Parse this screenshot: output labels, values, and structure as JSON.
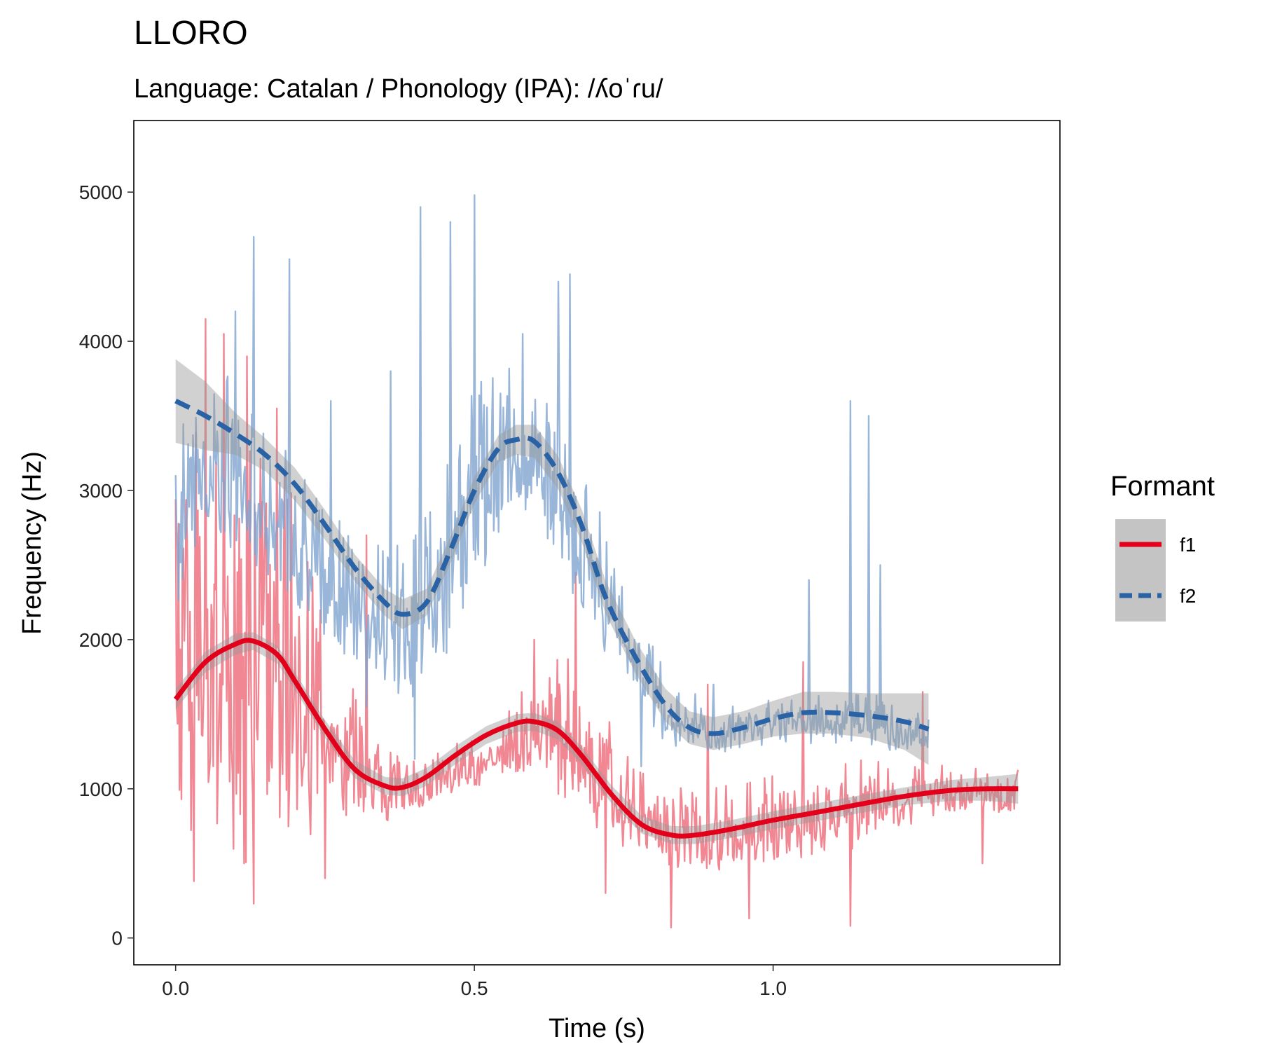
{
  "chart_data": {
    "type": "line",
    "title": "LLORO",
    "subtitle": "Language: Catalan / Phonology (IPA): /ʎoˈɾu/",
    "xlabel": "Time (s)",
    "ylabel": "Frequency (Hz)",
    "xlim": [
      -0.07,
      1.48
    ],
    "ylim": [
      -180,
      5480
    ],
    "x_ticks": [
      0.0,
      0.5,
      1.0
    ],
    "x_tick_labels": [
      "0.0",
      "0.5",
      "1.0"
    ],
    "y_ticks": [
      0,
      1000,
      2000,
      3000,
      4000,
      5000
    ],
    "y_tick_labels": [
      "0",
      "1000",
      "2000",
      "3000",
      "4000",
      "5000"
    ],
    "grid": false,
    "legend": {
      "title": "Formant",
      "placement": "right"
    },
    "series": [
      {
        "name": "f1",
        "color": "#E3001B",
        "raw_color": "#EE7280",
        "line_style": "solid",
        "smooth": {
          "x": [
            0.0,
            0.05,
            0.1,
            0.13,
            0.17,
            0.2,
            0.25,
            0.3,
            0.35,
            0.38,
            0.42,
            0.47,
            0.52,
            0.57,
            0.6,
            0.64,
            0.68,
            0.73,
            0.78,
            0.83,
            0.87,
            0.93,
            1.0,
            1.07,
            1.15,
            1.22,
            1.3,
            1.36,
            1.41
          ],
          "y": [
            1600,
            1850,
            1970,
            1990,
            1900,
            1720,
            1400,
            1130,
            1020,
            1010,
            1080,
            1230,
            1360,
            1440,
            1450,
            1390,
            1220,
            960,
            760,
            690,
            690,
            730,
            790,
            840,
            900,
            950,
            990,
            1000,
            1000
          ]
        },
        "smooth_band_half_width": [
          70,
          70,
          70,
          60,
          60,
          60,
          60,
          60,
          60,
          60,
          60,
          60,
          60,
          60,
          60,
          60,
          60,
          60,
          60,
          60,
          60,
          60,
          60,
          60,
          60,
          60,
          70,
          80,
          100
        ],
        "raw_range": {
          "x": [
            0.0,
            0.05,
            0.1,
            0.15,
            0.2,
            0.25,
            0.3,
            0.35,
            0.4,
            0.45,
            0.5,
            0.55,
            0.6,
            0.65,
            0.7,
            0.75,
            0.8,
            0.85,
            0.9,
            0.95,
            1.0,
            1.05,
            1.1,
            1.15,
            1.2,
            1.25,
            1.3,
            1.35,
            1.41
          ],
          "low": [
            700,
            400,
            450,
            450,
            500,
            800,
            800,
            750,
            850,
            950,
            1000,
            1050,
            1000,
            900,
            700,
            550,
            500,
            450,
            450,
            450,
            500,
            500,
            550,
            600,
            700,
            800,
            850,
            850,
            800
          ],
          "high": [
            3500,
            3700,
            3600,
            3400,
            3000,
            2200,
            1800,
            1300,
            1250,
            1300,
            1350,
            1500,
            1800,
            1900,
            1700,
            1300,
            1100,
            1100,
            1050,
            1100,
            1150,
            1150,
            1150,
            1200,
            1200,
            1200,
            1150,
            1150,
            1150
          ]
        },
        "raw_peaks": [
          {
            "x": 0.05,
            "y": 4150
          },
          {
            "x": 0.08,
            "y": 4050
          },
          {
            "x": 0.12,
            "y": 3900
          },
          {
            "x": 0.17,
            "y": 3550
          },
          {
            "x": 0.32,
            "y": 2700
          },
          {
            "x": 0.6,
            "y": 2000
          },
          {
            "x": 0.67,
            "y": 2450
          },
          {
            "x": 0.89,
            "y": 1700
          },
          {
            "x": 1.05,
            "y": 1850
          },
          {
            "x": 1.25,
            "y": 1650
          }
        ],
        "raw_dips": [
          {
            "x": 0.03,
            "y": 380
          },
          {
            "x": 0.13,
            "y": 230
          },
          {
            "x": 0.25,
            "y": 400
          },
          {
            "x": 0.72,
            "y": 300
          },
          {
            "x": 0.83,
            "y": 70
          },
          {
            "x": 0.96,
            "y": 130
          },
          {
            "x": 1.13,
            "y": 80
          },
          {
            "x": 1.35,
            "y": 500
          }
        ]
      },
      {
        "name": "f2",
        "color": "#2A62A6",
        "raw_color": "#7FA4D0",
        "line_style": "dashed",
        "smooth": {
          "x": [
            0.0,
            0.05,
            0.1,
            0.15,
            0.2,
            0.25,
            0.3,
            0.35,
            0.38,
            0.42,
            0.46,
            0.5,
            0.54,
            0.57,
            0.6,
            0.64,
            0.68,
            0.72,
            0.77,
            0.82,
            0.86,
            0.9,
            0.95,
            1.0,
            1.05,
            1.1,
            1.16,
            1.22,
            1.26
          ],
          "y": [
            3600,
            3500,
            3380,
            3240,
            3040,
            2770,
            2480,
            2250,
            2170,
            2250,
            2600,
            3000,
            3280,
            3340,
            3330,
            3120,
            2760,
            2280,
            1880,
            1560,
            1410,
            1370,
            1410,
            1470,
            1510,
            1510,
            1490,
            1450,
            1400
          ]
        },
        "smooth_band_half_width": [
          280,
          230,
          140,
          110,
          110,
          100,
          90,
          90,
          100,
          90,
          90,
          90,
          90,
          100,
          110,
          110,
          110,
          110,
          110,
          110,
          110,
          110,
          110,
          120,
          140,
          140,
          150,
          190,
          240
        ],
        "raw_range": {
          "x": [
            0.0,
            0.05,
            0.1,
            0.15,
            0.2,
            0.25,
            0.3,
            0.35,
            0.4,
            0.45,
            0.5,
            0.55,
            0.6,
            0.65,
            0.7,
            0.75,
            0.8,
            0.85,
            0.9,
            0.95,
            1.0,
            1.05,
            1.1,
            1.15,
            1.2,
            1.26
          ],
          "low": [
            2200,
            2600,
            2500,
            2400,
            2200,
            2000,
            1800,
            1650,
            1500,
            1800,
            2300,
            2700,
            2800,
            2300,
            2000,
            1700,
            1300,
            1250,
            1250,
            1250,
            1300,
            1300,
            1300,
            1300,
            1250,
            1250
          ],
          "high": [
            3600,
            3900,
            3800,
            3500,
            3300,
            3100,
            2900,
            2600,
            2900,
            3300,
            3700,
            4000,
            3900,
            3600,
            3000,
            2400,
            2000,
            1700,
            1600,
            1600,
            1600,
            1650,
            1700,
            1650,
            1600,
            1500
          ]
        },
        "raw_peaks": [
          {
            "x": 0.1,
            "y": 4200
          },
          {
            "x": 0.13,
            "y": 4700
          },
          {
            "x": 0.19,
            "y": 4550
          },
          {
            "x": 0.26,
            "y": 3600
          },
          {
            "x": 0.36,
            "y": 3800
          },
          {
            "x": 0.41,
            "y": 4900
          },
          {
            "x": 0.46,
            "y": 4800
          },
          {
            "x": 0.5,
            "y": 4980
          },
          {
            "x": 0.58,
            "y": 4050
          },
          {
            "x": 0.64,
            "y": 4400
          },
          {
            "x": 0.66,
            "y": 4450
          },
          {
            "x": 0.9,
            "y": 1700
          },
          {
            "x": 1.06,
            "y": 2400
          },
          {
            "x": 1.13,
            "y": 3600
          },
          {
            "x": 1.16,
            "y": 3500
          },
          {
            "x": 1.18,
            "y": 2500
          }
        ],
        "raw_dips": [
          {
            "x": 0.32,
            "y": 1550
          },
          {
            "x": 0.4,
            "y": 1200
          },
          {
            "x": 0.78,
            "y": 1150
          },
          {
            "x": 0.92,
            "y": 1250
          }
        ]
      }
    ]
  }
}
